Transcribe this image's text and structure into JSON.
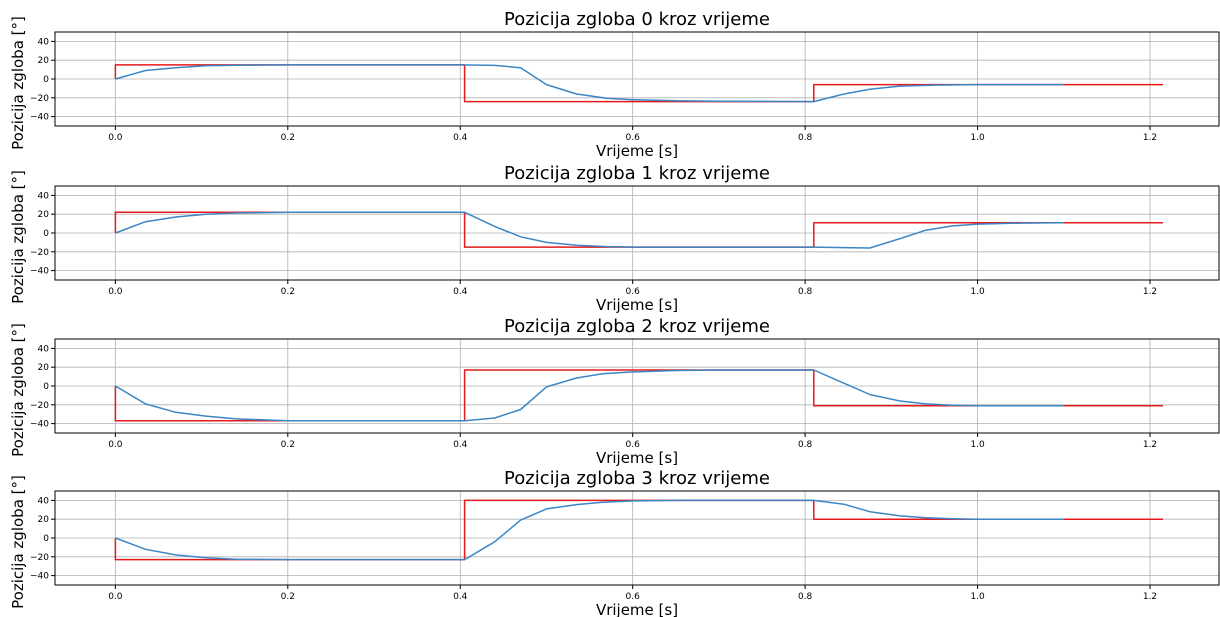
{
  "chart_data": [
    {
      "type": "line",
      "title": "Pozicija zgloba 0 kroz vrijeme",
      "xlabel": "Vrijeme [s]",
      "ylabel": "Pozicija zgloba [°]",
      "xlim": [
        -0.07,
        1.28
      ],
      "ylim": [
        -50,
        50
      ],
      "xticks": [
        0.0,
        0.2,
        0.4,
        0.6,
        0.8,
        1.0,
        1.2
      ],
      "xtick_labels": [
        "0.0",
        "0.2",
        "0.4",
        "0.6",
        "0.8",
        "1.0",
        "1.2"
      ],
      "yticks": [
        40,
        20,
        0,
        -20,
        -40
      ],
      "ytick_labels": [
        "40",
        "20",
        "0",
        "−20",
        "−40"
      ],
      "grid": true,
      "series": [
        {
          "color": "#e41a1c",
          "step": true,
          "x": [
            0.0,
            0.0,
            0.405,
            0.405,
            0.81,
            0.81,
            1.215
          ],
          "y": [
            0,
            15,
            15,
            -24,
            -24,
            -6,
            -6
          ]
        },
        {
          "color": "#3b86c4",
          "x": [
            0.0,
            0.035,
            0.07,
            0.105,
            0.14,
            0.2,
            0.3,
            0.4,
            0.44,
            0.47,
            0.5,
            0.535,
            0.57,
            0.6,
            0.65,
            0.7,
            0.75,
            0.81,
            0.845,
            0.875,
            0.91,
            0.95,
            1.0,
            1.1
          ],
          "y": [
            0,
            9,
            12,
            14,
            14.6,
            15,
            15,
            15,
            14.5,
            12,
            -6,
            -16,
            -20.5,
            -22,
            -23.2,
            -23.6,
            -23.8,
            -24,
            -16,
            -11,
            -7.5,
            -6.5,
            -6,
            -6
          ]
        }
      ]
    },
    {
      "type": "line",
      "title": "Pozicija zgloba 1 kroz vrijeme",
      "xlabel": "Vrijeme [s]",
      "ylabel": "Pozicija zgloba [°]",
      "xlim": [
        -0.07,
        1.28
      ],
      "ylim": [
        -50,
        50
      ],
      "xticks": [
        0.0,
        0.2,
        0.4,
        0.6,
        0.8,
        1.0,
        1.2
      ],
      "xtick_labels": [
        "0.0",
        "0.2",
        "0.4",
        "0.6",
        "0.8",
        "1.0",
        "1.2"
      ],
      "yticks": [
        40,
        20,
        0,
        -20,
        -40
      ],
      "ytick_labels": [
        "40",
        "20",
        "0",
        "−20",
        "−40"
      ],
      "grid": true,
      "series": [
        {
          "color": "#e41a1c",
          "step": true,
          "x": [
            0.0,
            0.0,
            0.405,
            0.405,
            0.81,
            0.81,
            1.215
          ],
          "y": [
            0,
            22,
            22,
            -15,
            -15,
            11,
            11
          ]
        },
        {
          "color": "#3b86c4",
          "x": [
            0.0,
            0.035,
            0.07,
            0.105,
            0.14,
            0.2,
            0.3,
            0.405,
            0.44,
            0.47,
            0.5,
            0.535,
            0.57,
            0.6,
            0.7,
            0.81,
            0.845,
            0.875,
            0.91,
            0.94,
            0.97,
            1.0,
            1.05,
            1.1
          ],
          "y": [
            0,
            12,
            17,
            20,
            21.3,
            22,
            22,
            22,
            7,
            -4,
            -10,
            -13,
            -14.5,
            -15,
            -15,
            -15,
            -15.5,
            -16,
            -6,
            3,
            7.5,
            9.5,
            10.5,
            11
          ]
        }
      ]
    },
    {
      "type": "line",
      "title": "Pozicija zgloba 2 kroz vrijeme",
      "xlabel": "Vrijeme [s]",
      "ylabel": "Pozicija zgloba [°]",
      "xlim": [
        -0.07,
        1.28
      ],
      "ylim": [
        -50,
        50
      ],
      "xticks": [
        0.0,
        0.2,
        0.4,
        0.6,
        0.8,
        1.0,
        1.2
      ],
      "xtick_labels": [
        "0.0",
        "0.2",
        "0.4",
        "0.6",
        "0.8",
        "1.0",
        "1.2"
      ],
      "yticks": [
        40,
        20,
        0,
        -20,
        -40
      ],
      "ytick_labels": [
        "40",
        "20",
        "0",
        "−20",
        "−40"
      ],
      "grid": true,
      "series": [
        {
          "color": "#e41a1c",
          "step": true,
          "x": [
            0.0,
            0.0,
            0.405,
            0.405,
            0.81,
            0.81,
            1.215
          ],
          "y": [
            0,
            -37,
            -37,
            17,
            17,
            -21,
            -21
          ]
        },
        {
          "color": "#3b86c4",
          "x": [
            0.0,
            0.035,
            0.07,
            0.105,
            0.14,
            0.2,
            0.3,
            0.405,
            0.44,
            0.47,
            0.5,
            0.535,
            0.565,
            0.6,
            0.65,
            0.7,
            0.81,
            0.845,
            0.875,
            0.91,
            0.94,
            0.97,
            1.0,
            1.1
          ],
          "y": [
            0,
            -19,
            -28,
            -32,
            -35,
            -37,
            -37,
            -37,
            -34,
            -25,
            -1,
            8.5,
            13,
            15,
            16.5,
            17,
            17,
            3,
            -9,
            -16,
            -19,
            -20.5,
            -21,
            -21
          ]
        }
      ]
    },
    {
      "type": "line",
      "title": "Pozicija zgloba 3 kroz vrijeme",
      "xlabel": "Vrijeme [s]",
      "ylabel": "Pozicija zgloba [°]",
      "xlim": [
        -0.07,
        1.28
      ],
      "ylim": [
        -50,
        50
      ],
      "xticks": [
        0.0,
        0.2,
        0.4,
        0.6,
        0.8,
        1.0,
        1.2
      ],
      "xtick_labels": [
        "0.0",
        "0.2",
        "0.4",
        "0.6",
        "0.8",
        "1.0",
        "1.2"
      ],
      "yticks": [
        40,
        20,
        0,
        -20,
        -40
      ],
      "ytick_labels": [
        "40",
        "20",
        "0",
        "−20",
        "−40"
      ],
      "grid": true,
      "series": [
        {
          "color": "#e41a1c",
          "step": true,
          "x": [
            0.0,
            0.0,
            0.405,
            0.405,
            0.81,
            0.81,
            1.215
          ],
          "y": [
            0,
            -23,
            -23,
            40,
            40,
            20,
            20
          ]
        },
        {
          "color": "#3b86c4",
          "x": [
            0.0,
            0.035,
            0.07,
            0.105,
            0.14,
            0.2,
            0.3,
            0.405,
            0.44,
            0.47,
            0.5,
            0.535,
            0.565,
            0.6,
            0.65,
            0.7,
            0.81,
            0.845,
            0.875,
            0.91,
            0.94,
            0.97,
            1.0,
            1.1
          ],
          "y": [
            0,
            -12,
            -18,
            -21,
            -22.5,
            -23,
            -23,
            -23,
            -4,
            19,
            31,
            35.5,
            38,
            39.5,
            40,
            40,
            40,
            36,
            28,
            23.5,
            21.5,
            20.5,
            20,
            20
          ]
        }
      ]
    }
  ]
}
